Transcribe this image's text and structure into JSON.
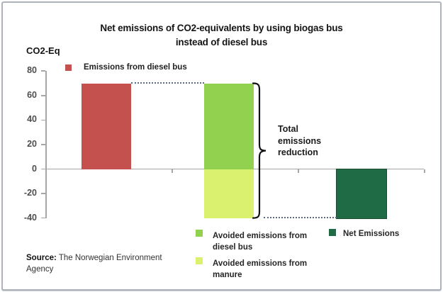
{
  "title": {
    "line1": "Net emissions of CO2-equivalents by using biogas bus",
    "line2": "instead of diesel bus"
  },
  "y_axis": {
    "label": "CO2-Eq",
    "ticks": [
      "80",
      "60",
      "40",
      "20",
      "0",
      "-20",
      "-40"
    ]
  },
  "legend_top": {
    "label": "Emissions from diesel bus",
    "color": "#C5514E"
  },
  "legend_bottom": [
    {
      "label_lines": [
        "Avoided  emissions from",
        "diesel bus"
      ],
      "color": "#92D050"
    },
    {
      "label_lines": [
        "Avoided emissions from",
        "manure"
      ],
      "color": "#D9F16E"
    },
    {
      "label_lines": [
        "Net Emissions"
      ],
      "color": "#1F6B45"
    }
  ],
  "annotation": {
    "line1": "Total",
    "line2": "emissions",
    "line3": "reduction"
  },
  "source": {
    "prefix": "Source:",
    "rest": " The Norwegian  Environment",
    "line2": "Agency"
  },
  "colors": {
    "axis": "#a6a6a6",
    "dotted_line": "#5b6b87",
    "bracket": "#111111"
  },
  "chart_data": {
    "type": "bar",
    "title": "Net emissions of CO2-equivalents by using biogas bus instead of diesel bus",
    "ylabel": "CO2-Eq",
    "ylim": [
      -40,
      80
    ],
    "yticks": [
      80,
      60,
      40,
      20,
      0,
      -20,
      -40
    ],
    "categories": [
      "",
      "",
      ""
    ],
    "x_axis_labels_visible": false,
    "grid": false,
    "series": [
      {
        "name": "Emissions from diesel bus",
        "color": "#C5514E",
        "category": 0,
        "value": 70
      },
      {
        "name": "Avoided emissions from diesel bus",
        "color": "#92D050",
        "category": 1,
        "value": 70
      },
      {
        "name": "Avoided emissions from manure",
        "color": "#D9F16E",
        "category": 1,
        "value": -40
      },
      {
        "name": "Net Emissions",
        "color": "#1F6B45",
        "category": 2,
        "value": -40
      }
    ],
    "annotations": [
      {
        "type": "bracket",
        "text": "Total emissions reduction",
        "category": 1,
        "span": [
          70,
          -40
        ]
      },
      {
        "type": "dotted-line",
        "y": 70,
        "from_category": 0,
        "to_category": 1
      },
      {
        "type": "dotted-line",
        "y": -40,
        "from_category": 1,
        "to_category": 2
      }
    ],
    "legend_position": "top-left and bottom"
  }
}
